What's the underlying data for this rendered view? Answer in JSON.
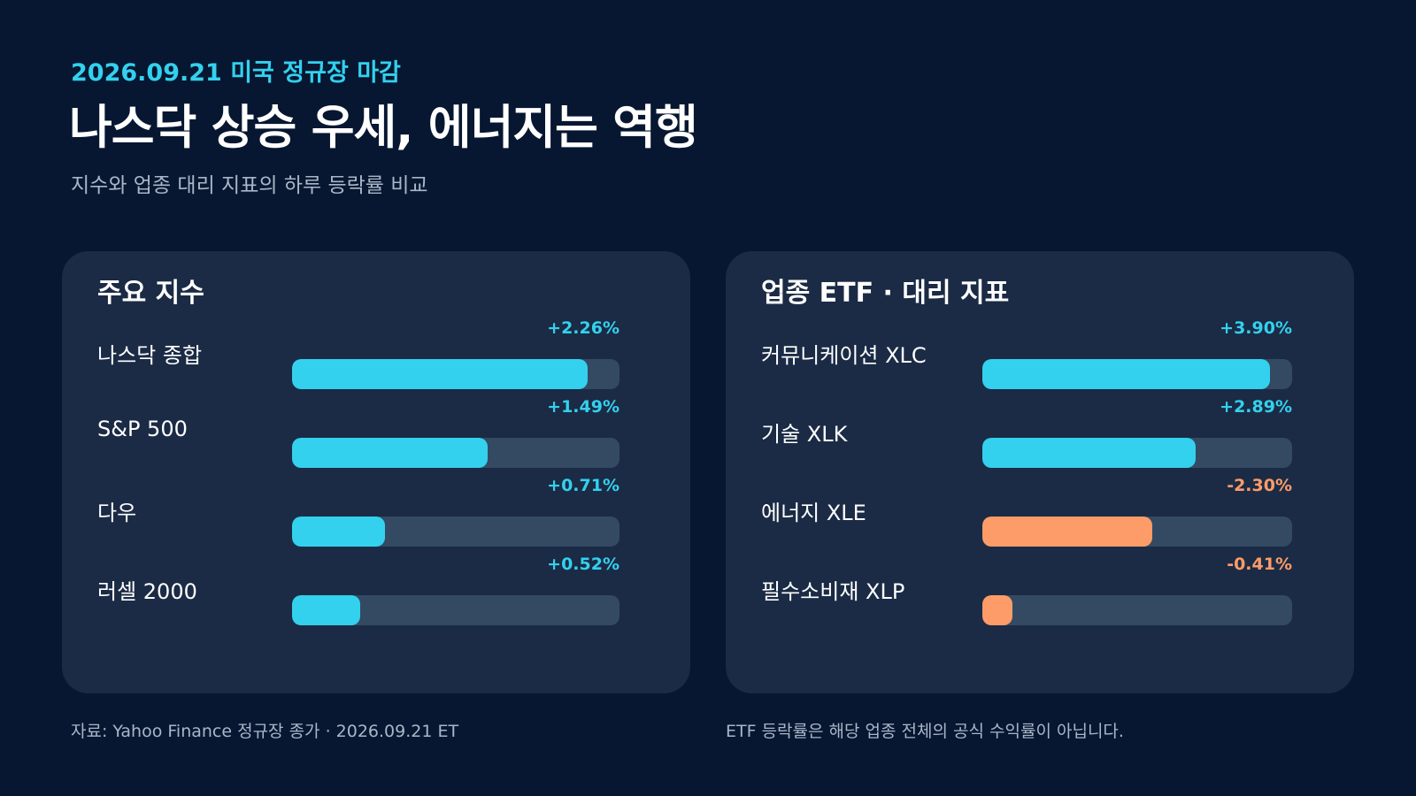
{
  "header": {
    "date_line": "2026.09.21 미국 정규장 마감",
    "headline": "나스닥 상승 우세, 에너지는 역행",
    "subtitle": "지수와 업종 대리 지표의 하루 등락률 비교"
  },
  "colors": {
    "background": "#071731",
    "panel": "#1b2b45",
    "track": "#334a62",
    "positive": "#33d1ee",
    "negative": "#fd9c68",
    "muted_text": "#aab6c8"
  },
  "chart_data": [
    {
      "type": "bar",
      "orientation": "horizontal",
      "title": "주요 지수",
      "categories": [
        "나스닥 종합",
        "S&P 500",
        "다우",
        "러셀 2000"
      ],
      "values": [
        2.26,
        1.49,
        0.71,
        0.52
      ],
      "value_labels": [
        "+2.26%",
        "+1.49%",
        "+0.71%",
        "+0.52%"
      ],
      "max_abs": 2.5,
      "unit": "%"
    },
    {
      "type": "bar",
      "orientation": "horizontal",
      "title": "업종 ETF · 대리 지표",
      "categories": [
        "커뮤니케이션 XLC",
        "기술 XLK",
        "에너지 XLE",
        "필수소비재 XLP"
      ],
      "values": [
        3.9,
        2.89,
        -2.3,
        -0.41
      ],
      "value_labels": [
        "+3.90%",
        "+2.89%",
        "-2.30%",
        "-0.41%"
      ],
      "max_abs": 4.2,
      "unit": "%"
    }
  ],
  "footer": {
    "source": "자료: Yahoo Finance 정규장 종가 · 2026.09.21 ET",
    "note": "ETF 등락률은 해당 업종 전체의 공식 수익률이 아닙니다."
  }
}
